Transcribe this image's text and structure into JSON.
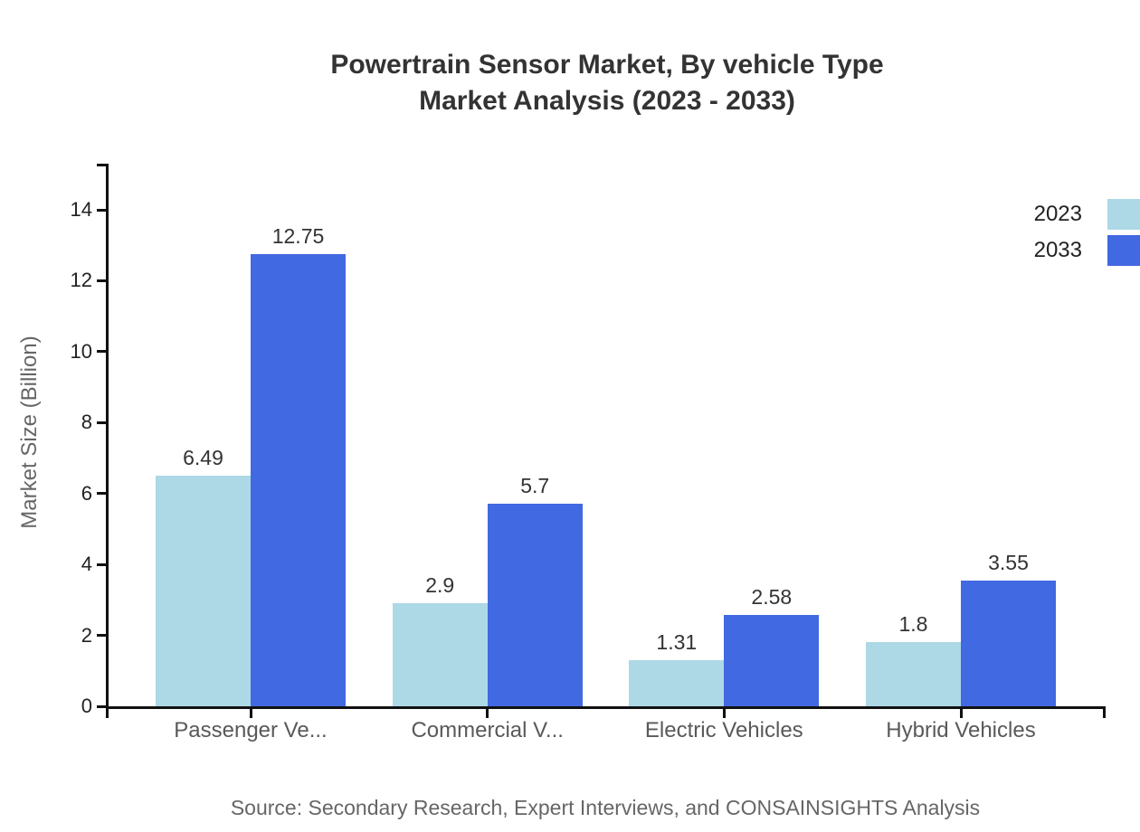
{
  "title": {
    "line1": "Powertrain Sensor Market, By vehicle Type",
    "line2": "Market Analysis (2023 - 2033)"
  },
  "source_note": "Source: Secondary Research, Expert Interviews, and CONSAINSIGHTS Analysis",
  "chart_data": {
    "type": "bar",
    "title": "Powertrain Sensor Market, By vehicle Type Market Analysis (2023 - 2033)",
    "categories": [
      "Passenger Ve...",
      "Commercial V...",
      "Electric Vehicles",
      "Hybrid Vehicles"
    ],
    "series": [
      {
        "name": "2023",
        "color": "#ADD8E6",
        "values": [
          6.49,
          2.9,
          1.31,
          1.8
        ]
      },
      {
        "name": "2033",
        "color": "#4169E1",
        "values": [
          12.75,
          5.7,
          2.58,
          3.55
        ]
      }
    ],
    "xlabel": "",
    "ylabel": "Market Size (Billion)",
    "ylim": [
      0,
      14
    ],
    "yticks": [
      0,
      2,
      4,
      6,
      8,
      10,
      12,
      14
    ],
    "grid": false,
    "legend_position": "top-right",
    "bar_value_labels": true
  },
  "colors": {
    "axis": "#111111",
    "title_text": "#333333",
    "ytick_label_text": "#222222",
    "value_label_text": "#333333",
    "category_label_text": "#595959",
    "muted_text": "#666666",
    "series_2023": "#ADD8E6",
    "series_2033": "#4169E1"
  }
}
